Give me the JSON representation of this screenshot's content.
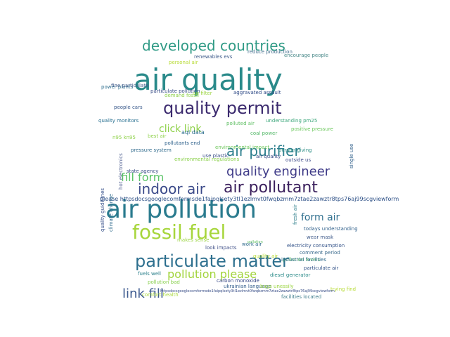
{
  "words": [
    {
      "text": "air quality",
      "color": "#2a8a8a"
    },
    {
      "text": "air pollution",
      "color": "#2a7b8e"
    },
    {
      "text": "quality permit",
      "color": "#3b2a6e"
    },
    {
      "text": "developed countries",
      "color": "#2f9a85"
    },
    {
      "text": "fossil fuel",
      "color": "#a7d63c"
    },
    {
      "text": "particulate matter",
      "color": "#2d6f8e"
    },
    {
      "text": "air pollutant",
      "color": "#3a1f5c"
    },
    {
      "text": "indoor air",
      "color": "#3b4a8a"
    },
    {
      "text": "quality engineer",
      "color": "#3f3b88"
    },
    {
      "text": "air purifier",
      "color": "#2d7f8e"
    },
    {
      "text": "pollution please",
      "color": "#a2d43c"
    },
    {
      "text": "click link",
      "color": "#8fd14a"
    },
    {
      "text": "fill form",
      "color": "#5bc467"
    },
    {
      "text": "link fill",
      "color": "#3d5a8f"
    },
    {
      "text": "form air",
      "color": "#2f6f8e"
    },
    {
      "text": "please httpsdocsgooglecomformsde1faipqlsety3tl1ezlmvt0fwqbzmm7ztae2zawztr8tps76aj99scgviewform",
      "color": "#2c4f86"
    },
    {
      "text": "quality monitors",
      "color": "#1f6a8c"
    },
    {
      "text": "people cars",
      "color": "#3a5a8c"
    },
    {
      "text": "power plants",
      "color": "#2f6f8e"
    },
    {
      "text": "fine particulate",
      "color": "#3f5a8a"
    },
    {
      "text": "particulate pollution",
      "color": "#3b4f88"
    },
    {
      "text": "aggravated assault",
      "color": "#2f4a86"
    },
    {
      "text": "renewables evs",
      "color": "#3e5a8a"
    },
    {
      "text": "reduce production",
      "color": "#3f6b8b"
    },
    {
      "text": "encourage people",
      "color": "#4a8a8a"
    },
    {
      "text": "understanding pm25",
      "color": "#3aa67a"
    },
    {
      "text": "positive pressure",
      "color": "#6bc75c"
    },
    {
      "text": "polluted air",
      "color": "#5fbf63"
    },
    {
      "text": "coal power",
      "color": "#56b96a"
    },
    {
      "text": "aqi data",
      "color": "#2e6f8e"
    },
    {
      "text": "pollutants end",
      "color": "#2c5f8a"
    },
    {
      "text": "environmental impact",
      "color": "#6cc65a"
    },
    {
      "text": "pressure system",
      "color": "#2f6a8c"
    },
    {
      "text": "use plastic",
      "color": "#3a4f88"
    },
    {
      "text": "environmental regulations",
      "color": "#8ad04a"
    },
    {
      "text": "state agency",
      "color": "#3a4e86"
    },
    {
      "text": "person giving",
      "color": "#2f8f86"
    },
    {
      "text": "outside us",
      "color": "#3f4b88"
    },
    {
      "text": "todays understanding",
      "color": "#2f5f8a"
    },
    {
      "text": "wear mask",
      "color": "#3f5a8a"
    },
    {
      "text": "electricity consumption",
      "color": "#2f4f86"
    },
    {
      "text": "comment period",
      "color": "#3a6a8c"
    },
    {
      "text": "pollution levels",
      "color": "#5cbf63"
    },
    {
      "text": "makes sense",
      "color": "#9ad43f"
    },
    {
      "text": "look impacts",
      "color": "#3f4f88"
    },
    {
      "text": "work air",
      "color": "#2f6a8c"
    },
    {
      "text": "fuels well",
      "color": "#2a7f8a"
    },
    {
      "text": "carbon monoxide",
      "color": "#2f3f80"
    },
    {
      "text": "pollution bad",
      "color": "#86cf4a"
    },
    {
      "text": "comfort health",
      "color": "#a9d83c"
    },
    {
      "text": "ukrainian language",
      "color": "#2f5a8a"
    },
    {
      "text": "bags unessily",
      "color": "#9ad43f"
    },
    {
      "text": "facilities located",
      "color": "#3f7d8c"
    },
    {
      "text": "industrial facilities",
      "color": "#2f6a8c"
    },
    {
      "text": "particulate air",
      "color": "#2f4f86"
    },
    {
      "text": "diesel generator",
      "color": "#2a8a88"
    },
    {
      "text": "trying find",
      "color": "#b7db35"
    },
    {
      "text": "quality guidelines",
      "color": "#2f4a86"
    },
    {
      "text": "climate change",
      "color": "#2f6a8c"
    },
    {
      "text": "hot electronics",
      "color": "#4f5f90"
    },
    {
      "text": "single use",
      "color": "#2f5f8a"
    },
    {
      "text": "fresh air",
      "color": "#2f7f8c"
    },
    {
      "text": "n95 kn95",
      "color": "#8fd14a"
    },
    {
      "text": "demand fossil",
      "color": "#8fd14a"
    },
    {
      "text": "personal air",
      "color": "#b7db35"
    },
    {
      "text": "quality air",
      "color": "#b7db35"
    },
    {
      "text": "air filter",
      "color": "#9ad43f"
    },
    {
      "text": "air quality",
      "color": "#3a4f88"
    },
    {
      "text": "best air",
      "color": "#8fd14a"
    },
    {
      "text": "pollution",
      "color": "#5fbf63"
    },
    {
      "text": "httpsdocsgooglecomformsde1faipqlsety3tl1ezlmvt0fwqbzmm7ztae2zawztr8tps76aj99scgviewform",
      "color": "#3a4f88"
    }
  ]
}
